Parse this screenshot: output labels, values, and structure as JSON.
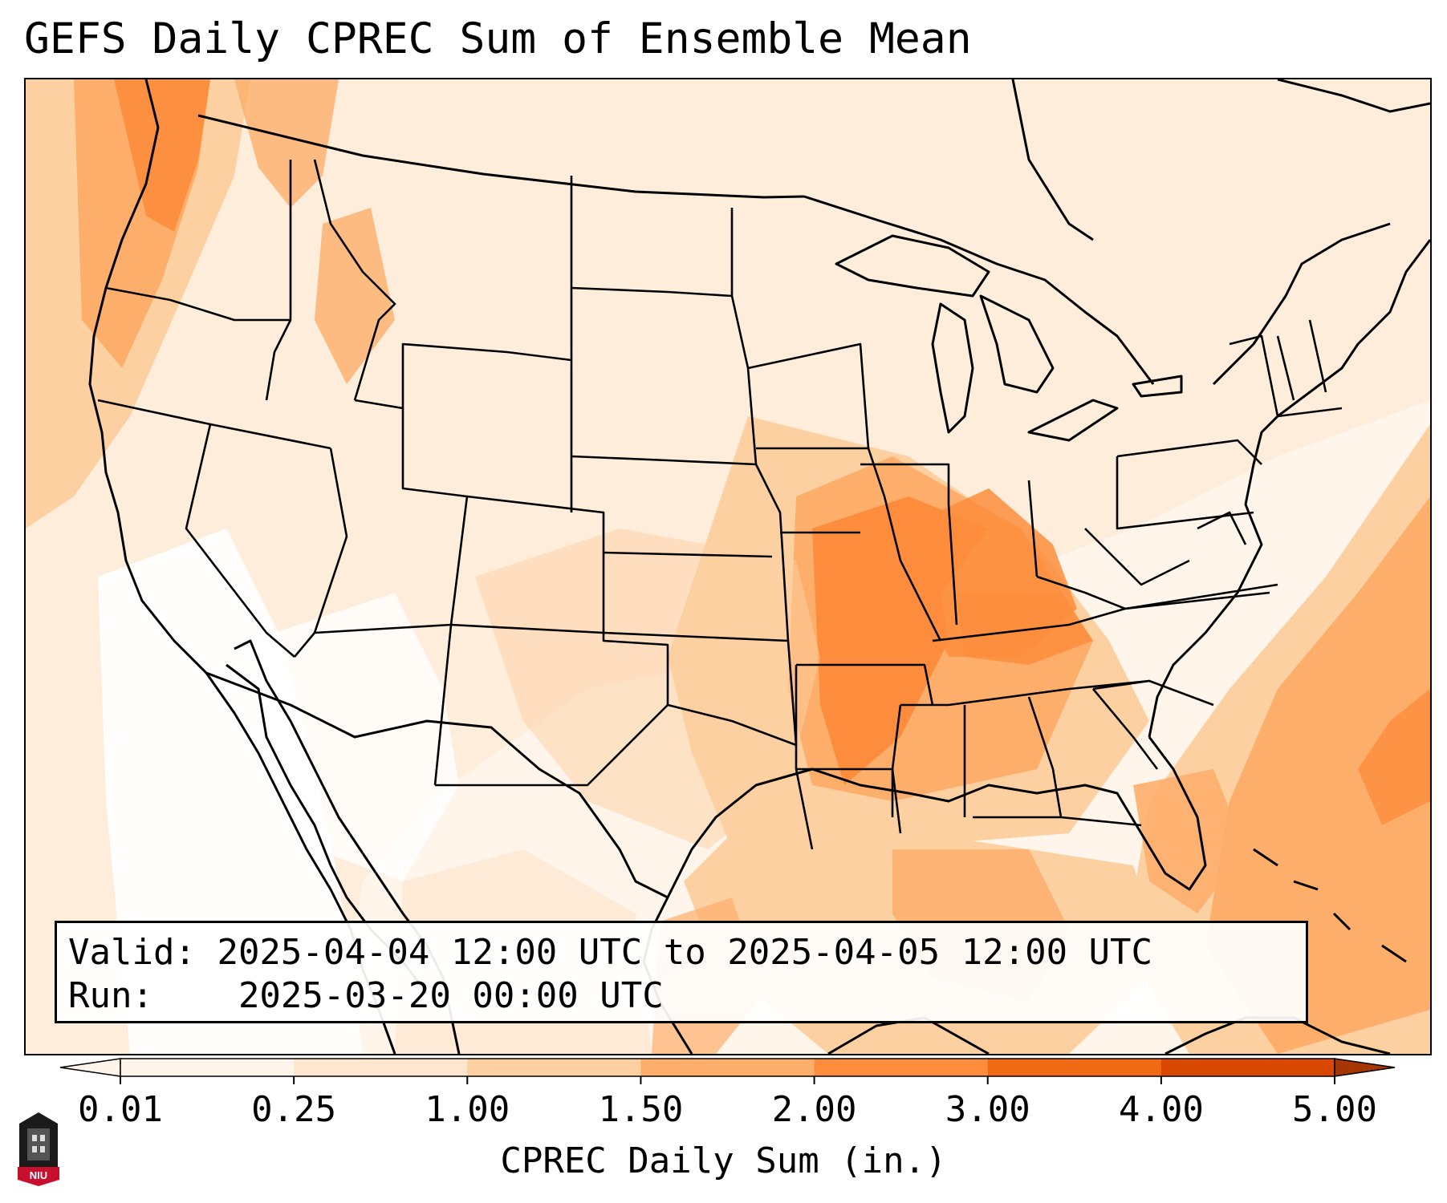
{
  "title": "GEFS Daily CPREC Sum of Ensemble Mean",
  "info": {
    "valid_label": "Valid:",
    "valid_value": "2025-04-04 12:00 UTC to 2025-04-05 12:00 UTC",
    "run_label": "Run:",
    "run_value": "2025-03-20 00:00 UTC"
  },
  "colorbar": {
    "title": "CPREC Daily Sum (in.)",
    "ticks": [
      "0.01",
      "0.25",
      "1.00",
      "1.50",
      "2.00",
      "3.00",
      "4.00",
      "5.00"
    ],
    "colors": [
      "#fff5eb",
      "#fee6ce",
      "#fdd0a2",
      "#fdae6b",
      "#fd8d3c",
      "#f16913",
      "#d94801",
      "#a63603"
    ],
    "extend": "both"
  },
  "logo": {
    "text": "NIU",
    "color": "#c8102e"
  },
  "map": {
    "projection": "lambert-conformal",
    "region": "CONUS",
    "features": [
      "state-borders",
      "coastlines",
      "great-lakes",
      "mexico",
      "cuba-bahamas"
    ]
  }
}
